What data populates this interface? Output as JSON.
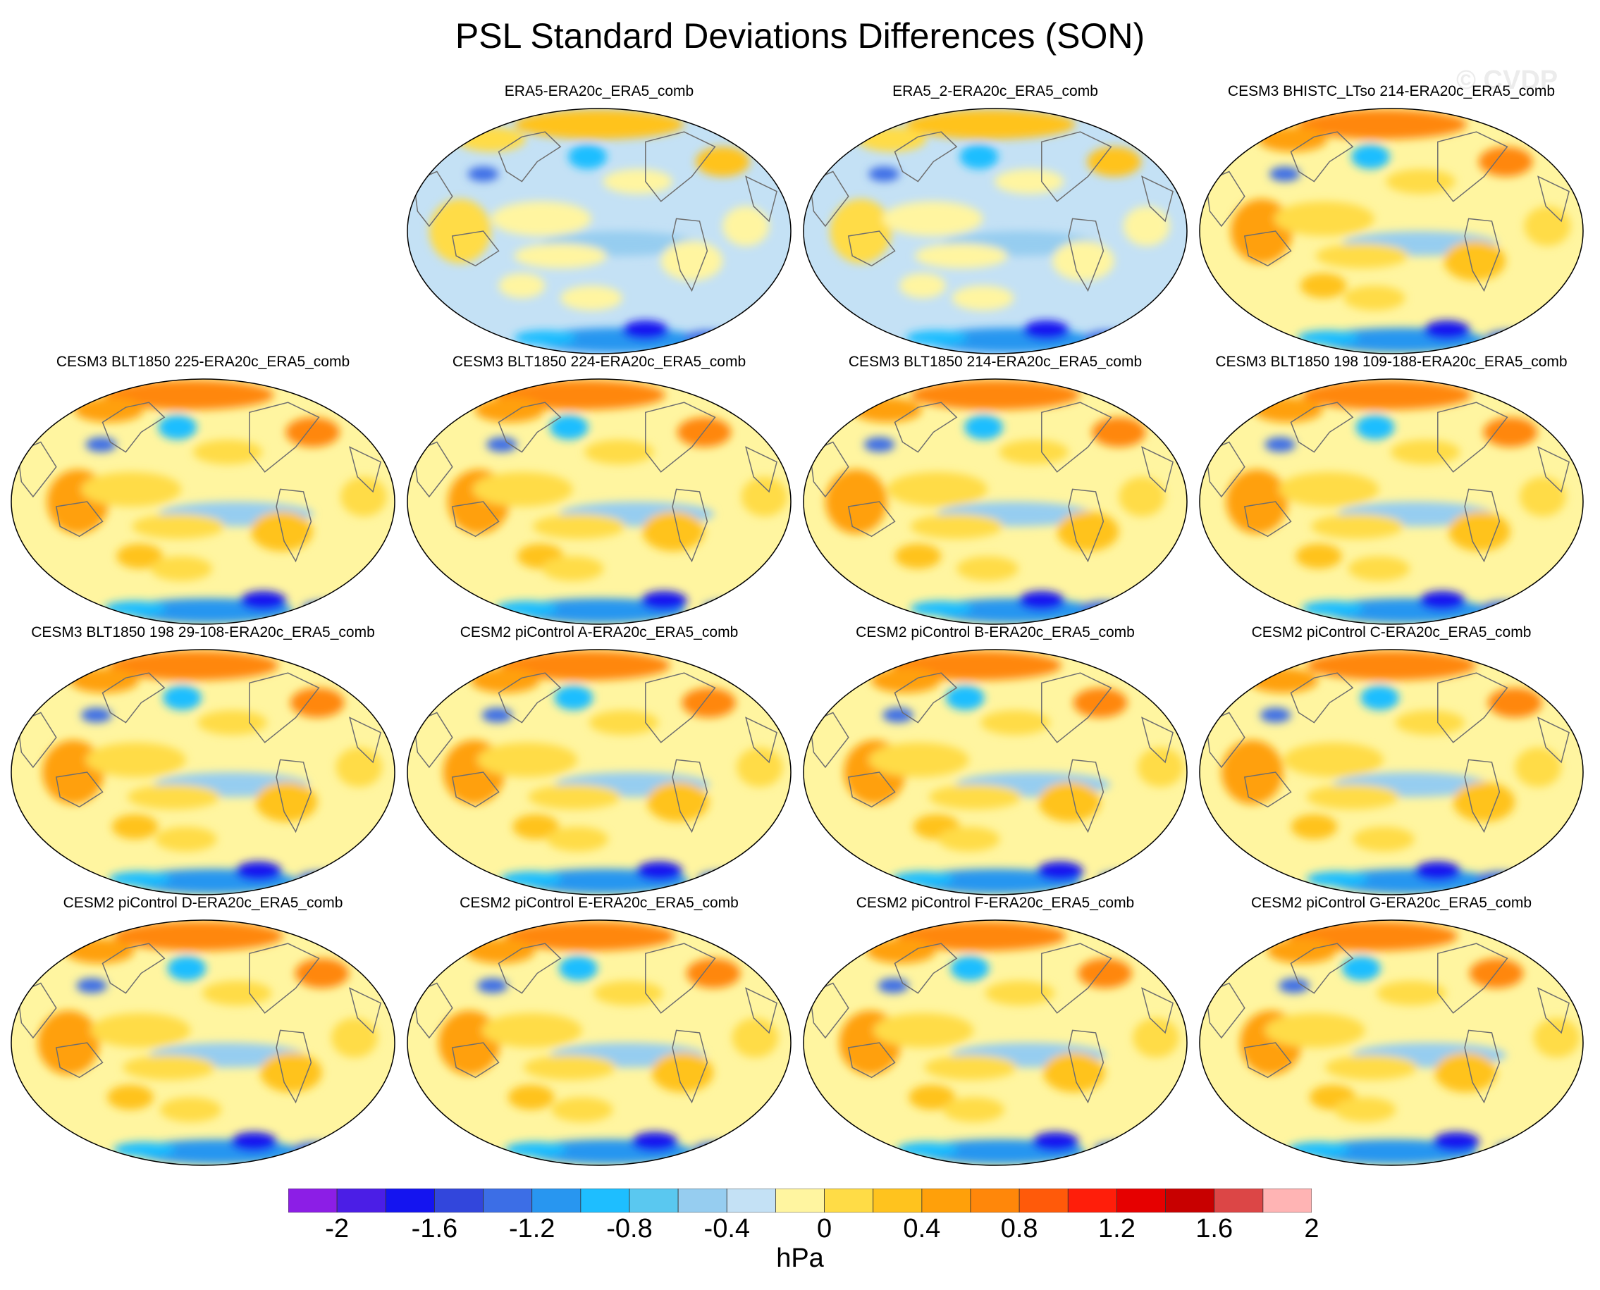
{
  "title": "PSL Standard Deviations Differences (SON)",
  "watermark": "© CVDP",
  "colorbar": {
    "units": "hPa",
    "tick_labels": [
      "-2",
      "-1.6",
      "-1.2",
      "-0.8",
      "-0.4",
      "0",
      "0.4",
      "0.8",
      "1.2",
      "1.6",
      "2"
    ],
    "colors": [
      "#8c1ee6",
      "#4b1ee6",
      "#1414f0",
      "#3246dc",
      "#3c6ee6",
      "#2896f0",
      "#1ebeff",
      "#5ac8f0",
      "#96cdf0",
      "#c4e1f5",
      "#fff5a0",
      "#ffdc46",
      "#ffc31e",
      "#ffa00a",
      "#ff870a",
      "#ff5a0a",
      "#ff1e0a",
      "#e60000",
      "#c80000",
      "#dc4646",
      "#ffb4b4"
    ]
  },
  "panels": [
    {
      "title": "ERA5-ERA20c_ERA5_comb"
    },
    {
      "title": "ERA5_2-ERA20c_ERA5_comb"
    },
    {
      "title": "CESM3 BHISTC_LTso 214-ERA20c_ERA5_comb"
    },
    {
      "title": "CESM3 BLT1850 225-ERA20c_ERA5_comb"
    },
    {
      "title": "CESM3 BLT1850 224-ERA20c_ERA5_comb"
    },
    {
      "title": "CESM3 BLT1850 214-ERA20c_ERA5_comb"
    },
    {
      "title": "CESM3 BLT1850 198 109-188-ERA20c_ERA5_comb"
    },
    {
      "title": "CESM3 BLT1850 198 29-108-ERA20c_ERA5_comb"
    },
    {
      "title": "CESM2 piControl A-ERA20c_ERA5_comb"
    },
    {
      "title": "CESM2 piControl B-ERA20c_ERA5_comb"
    },
    {
      "title": "CESM2 piControl C-ERA20c_ERA5_comb"
    },
    {
      "title": "CESM2 piControl D-ERA20c_ERA5_comb"
    },
    {
      "title": "CESM2 piControl E-ERA20c_ERA5_comb"
    },
    {
      "title": "CESM2 piControl F-ERA20c_ERA5_comb"
    },
    {
      "title": "CESM2 piControl G-ERA20c_ERA5_comb"
    }
  ]
}
